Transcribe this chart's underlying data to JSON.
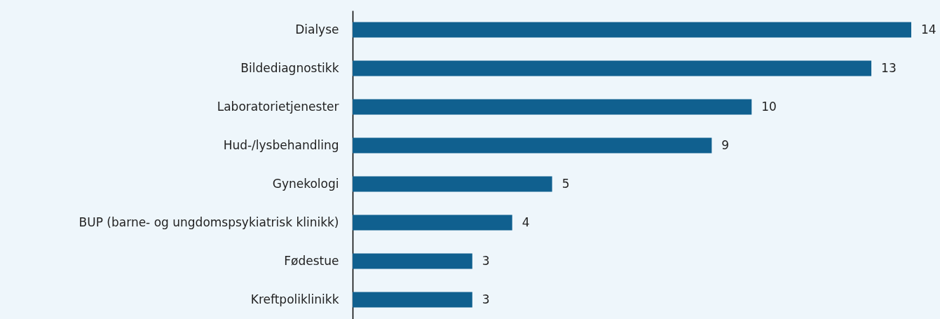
{
  "chart_data": {
    "type": "bar",
    "orientation": "horizontal",
    "categories": [
      "Dialyse",
      "Bildediagnostikk",
      "Laboratorietjenester",
      "Hud-/lysbehandling",
      "Gynekologi",
      "BUP (barne- og ungdomspsykiatrisk klinikk)",
      "Fødestue",
      "Kreftpoliklinikk"
    ],
    "values": [
      14,
      13,
      10,
      9,
      5,
      4,
      3,
      3
    ],
    "color": "#10608f",
    "data_labels": true,
    "grid": false,
    "tick_labels": "y"
  }
}
